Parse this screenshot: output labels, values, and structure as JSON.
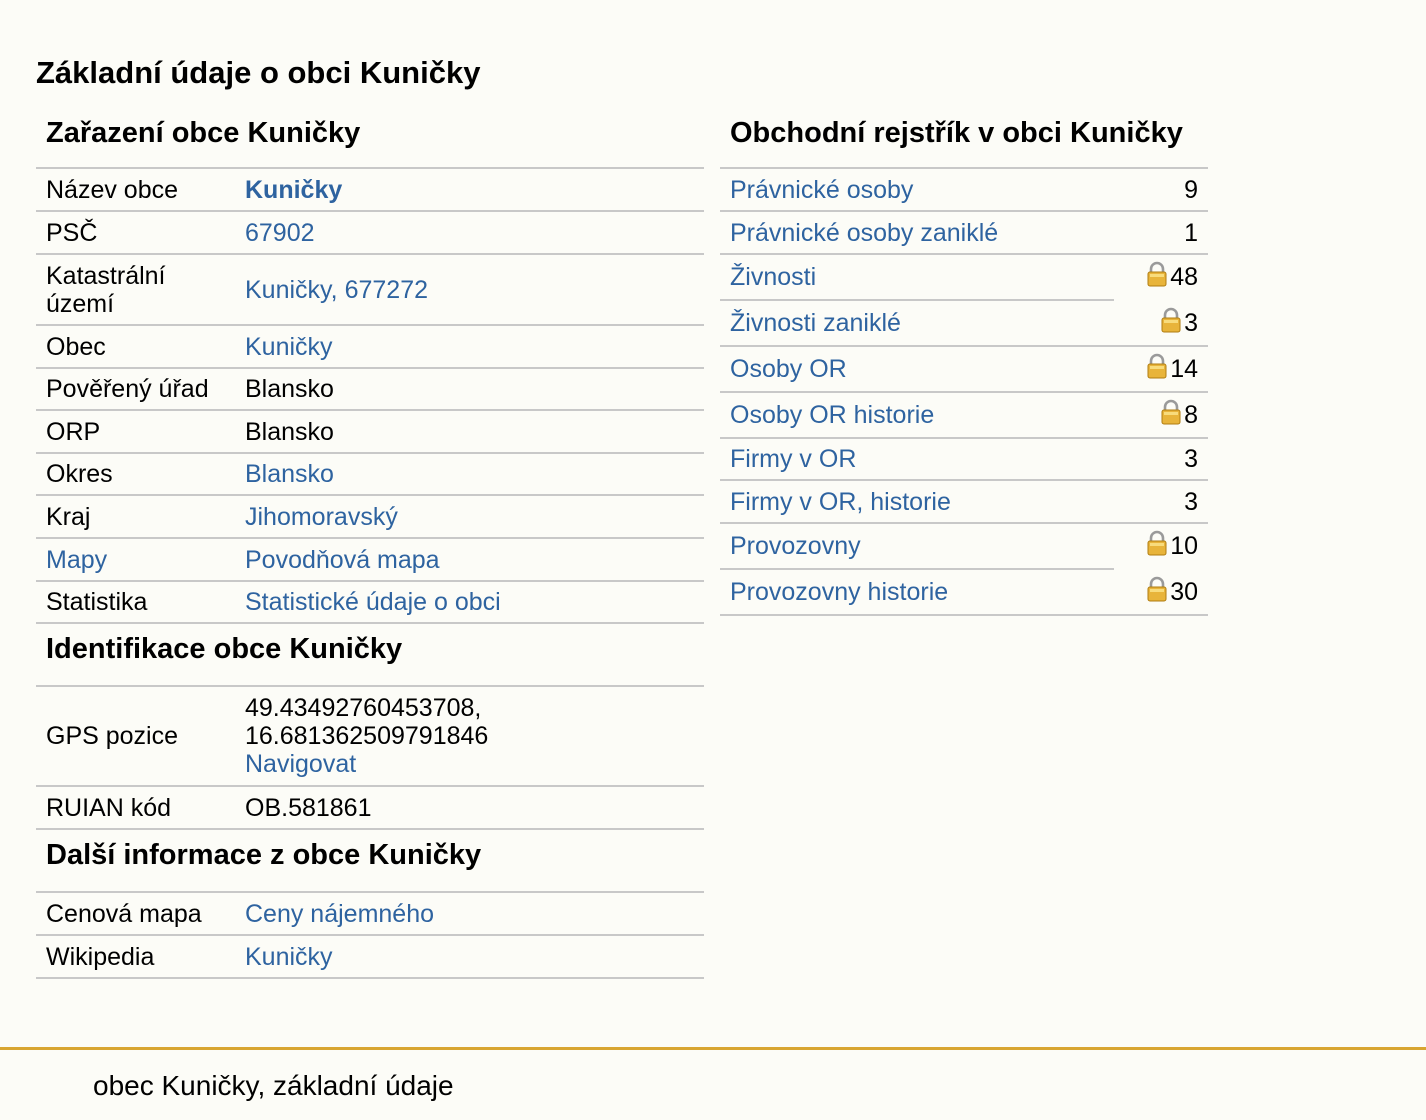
{
  "page": {
    "title": "Základní údaje o obci Kuničky"
  },
  "zarazeni": {
    "heading": "Zařazení obce Kuničky",
    "rows": [
      {
        "label": "Název obce",
        "value": "Kuničky"
      },
      {
        "label": "PSČ",
        "value": "67902"
      },
      {
        "label": "Katastrální území",
        "value": "Kuničky, 677272"
      },
      {
        "label": "Obec",
        "value": "Kuničky"
      },
      {
        "label": "Pověřený úřad",
        "value": "Blansko"
      },
      {
        "label": "ORP",
        "value": "Blansko"
      },
      {
        "label": "Okres",
        "value": "Blansko"
      },
      {
        "label": "Kraj",
        "value": "Jihomoravský"
      },
      {
        "label": "Mapy",
        "value": "Povodňová mapa"
      },
      {
        "label": "Statistika",
        "value": "Statistické údaje o obci"
      }
    ]
  },
  "identifikace": {
    "heading": "Identifikace obce Kuničky",
    "gps_label": "GPS pozice",
    "gps_lat": "49.43492760453708,",
    "gps_lon": "16.681362509791846",
    "navigate": "Navigovat",
    "ruian_label": "RUIAN kód",
    "ruian_value": "OB.581861"
  },
  "dalsi": {
    "heading": "Další informace z obce Kuničky",
    "rows": [
      {
        "label": "Cenová mapa",
        "value": "Ceny nájemného"
      },
      {
        "label": "Wikipedia",
        "value": "Kuničky"
      }
    ]
  },
  "rejstrik": {
    "heading": "Obchodní rejstřík v obci Kuničky",
    "rows": [
      {
        "label": "Právnické osoby",
        "count": "9",
        "locked": false
      },
      {
        "label": "Právnické osoby zaniklé",
        "count": "1",
        "locked": false
      },
      {
        "label": "Živnosti",
        "count": "48",
        "locked": true
      },
      {
        "label": "Živnosti zaniklé",
        "count": "3",
        "locked": true
      },
      {
        "label": "Osoby OR",
        "count": "14",
        "locked": true
      },
      {
        "label": "Osoby OR historie",
        "count": "8",
        "locked": true
      },
      {
        "label": "Firmy v OR",
        "count": "3",
        "locked": false
      },
      {
        "label": "Firmy v OR, historie",
        "count": "3",
        "locked": false
      },
      {
        "label": "Provozovny",
        "count": "10",
        "locked": true
      },
      {
        "label": "Provozovny historie",
        "count": "30",
        "locked": true
      }
    ]
  },
  "footer": {
    "text": "obec Kuničky, základní údaje"
  },
  "colors": {
    "link": "#2e63a0",
    "background": "#fcfcf7",
    "rule": "#c8c8c8",
    "footer_rule": "#d8a531",
    "lock_icon": "#e8b43a"
  }
}
